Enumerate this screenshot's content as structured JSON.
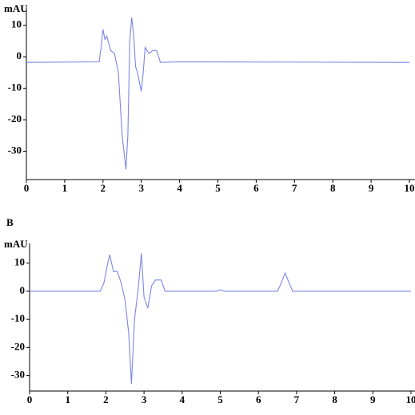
{
  "chart_data": [
    {
      "type": "line",
      "ylabel": "mAU",
      "x": [
        0,
        1.9,
        1.95,
        2.0,
        2.05,
        2.1,
        2.2,
        2.3,
        2.4,
        2.5,
        2.6,
        2.65,
        2.7,
        2.75,
        2.8,
        2.85,
        2.9,
        3.0,
        3.05,
        3.1,
        3.2,
        3.3,
        3.4,
        3.5,
        4,
        10
      ],
      "values": [
        -1.8,
        -1.6,
        3,
        8.7,
        5.5,
        6.5,
        2,
        1,
        -5,
        -25,
        -35.8,
        -25,
        5,
        12.5,
        7,
        -3,
        -5,
        -11,
        -5,
        3,
        1,
        2,
        2,
        -1.8,
        -1.6,
        -1.8
      ],
      "color": "#7b86e6",
      "xlim": [
        0,
        10
      ],
      "xticks": [
        0,
        1,
        2,
        3,
        4,
        5,
        6,
        7,
        8,
        9,
        10
      ],
      "ylim": [
        -39,
        15.5
      ],
      "yticks": [
        10,
        0,
        -10,
        -20,
        -30
      ]
    },
    {
      "type": "line",
      "label": "B",
      "ylabel": "mAU",
      "x": [
        0,
        1.85,
        1.95,
        2.05,
        2.1,
        2.2,
        2.3,
        2.4,
        2.5,
        2.6,
        2.67,
        2.75,
        2.85,
        2.93,
        3.0,
        3.1,
        3.2,
        3.3,
        3.45,
        3.55,
        4.9,
        5.0,
        5.1,
        6.5,
        6.6,
        6.7,
        6.8,
        6.9,
        10
      ],
      "values": [
        0,
        0,
        3,
        10,
        13,
        7,
        7,
        3,
        -3,
        -15,
        -33,
        -10,
        1,
        13.5,
        -2,
        -6,
        2,
        4,
        4,
        0,
        0,
        0.5,
        0,
        0,
        3,
        6.5,
        3,
        0,
        0
      ],
      "color": "#7b86e6",
      "xlim": [
        0,
        10
      ],
      "xticks": [
        0,
        1,
        2,
        3,
        4,
        5,
        6,
        7,
        8,
        9,
        10
      ],
      "ylim": [
        -35.5,
        17
      ],
      "yticks": [
        10,
        0,
        -10,
        -20,
        -30
      ]
    }
  ]
}
